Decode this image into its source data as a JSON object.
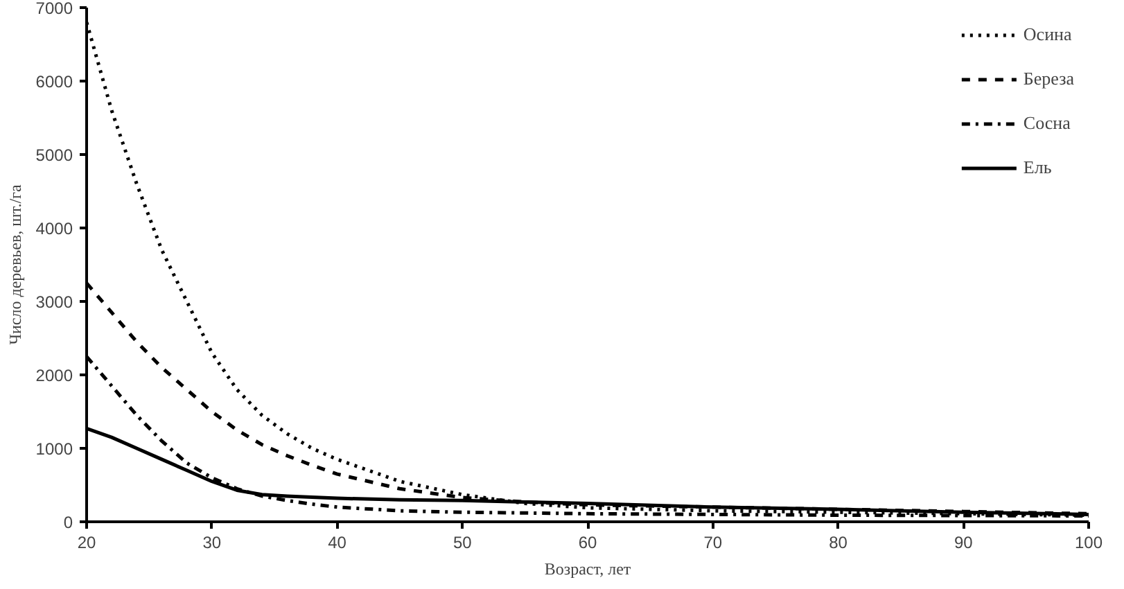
{
  "chart_data": {
    "type": "line",
    "xlabel": "Возраст, лет",
    "ylabel": "Число деревьев, шт./га",
    "x": [
      20,
      22,
      24,
      26,
      28,
      30,
      32,
      34,
      36,
      38,
      40,
      45,
      50,
      55,
      60,
      70,
      80,
      90,
      100
    ],
    "xlim": [
      20,
      100
    ],
    "xticks": [
      20,
      30,
      40,
      50,
      60,
      70,
      80,
      90,
      100
    ],
    "ylim": [
      0,
      7000
    ],
    "yticks": [
      0,
      1000,
      2000,
      3000,
      4000,
      5000,
      6000,
      7000
    ],
    "grid": false,
    "legend": "top right",
    "marker": "none",
    "series": [
      {
        "name": "Осина",
        "color": "#000000",
        "line_style": "dotted",
        "values": [
          6800,
          5600,
          4600,
          3700,
          3000,
          2300,
          1800,
          1450,
          1200,
          1000,
          850,
          550,
          370,
          250,
          190,
          150,
          130,
          110,
          90
        ]
      },
      {
        "name": "Береза",
        "color": "#000000",
        "line_style": "dashed",
        "values": [
          3250,
          2850,
          2450,
          2100,
          1800,
          1500,
          1250,
          1050,
          900,
          770,
          650,
          450,
          330,
          270,
          230,
          200,
          170,
          140,
          110
        ]
      },
      {
        "name": "Сосна",
        "color": "#000000",
        "line_style": "dashdot",
        "values": [
          2250,
          1850,
          1450,
          1100,
          800,
          600,
          450,
          350,
          290,
          240,
          200,
          150,
          130,
          120,
          110,
          100,
          90,
          85,
          80
        ]
      },
      {
        "name": "Ель",
        "color": "#000000",
        "line_style": "solid",
        "values": [
          1270,
          1150,
          1000,
          850,
          700,
          550,
          430,
          370,
          350,
          335,
          320,
          300,
          290,
          270,
          250,
          200,
          170,
          130,
          100
        ]
      }
    ]
  }
}
